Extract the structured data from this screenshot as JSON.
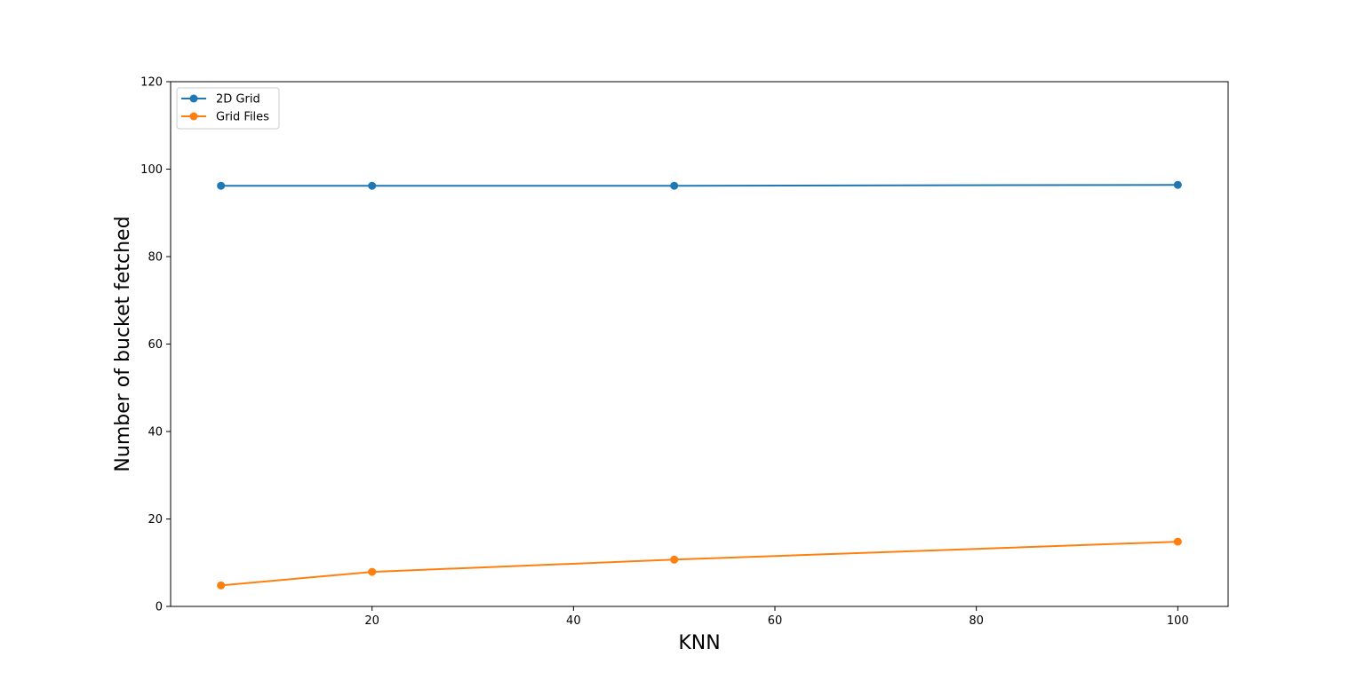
{
  "chart_data": {
    "type": "line",
    "title": "",
    "xlabel": "KNN",
    "ylabel": "Number of bucket fetched",
    "xlim": [
      0,
      105
    ],
    "ylim": [
      0,
      120
    ],
    "xticks": [
      20,
      40,
      60,
      80,
      100
    ],
    "yticks": [
      0,
      20,
      40,
      60,
      80,
      100,
      120
    ],
    "grid": false,
    "legend_position": "top-left",
    "x": [
      5,
      20,
      50,
      100
    ],
    "series": [
      {
        "name": "2D Grid",
        "values": [
          96.2,
          96.2,
          96.2,
          96.4
        ],
        "color": "#1f77b4",
        "marker": "circle"
      },
      {
        "name": "Grid Files",
        "values": [
          4.8,
          7.9,
          10.7,
          14.8
        ],
        "color": "#ff7f0e",
        "marker": "circle"
      }
    ]
  }
}
